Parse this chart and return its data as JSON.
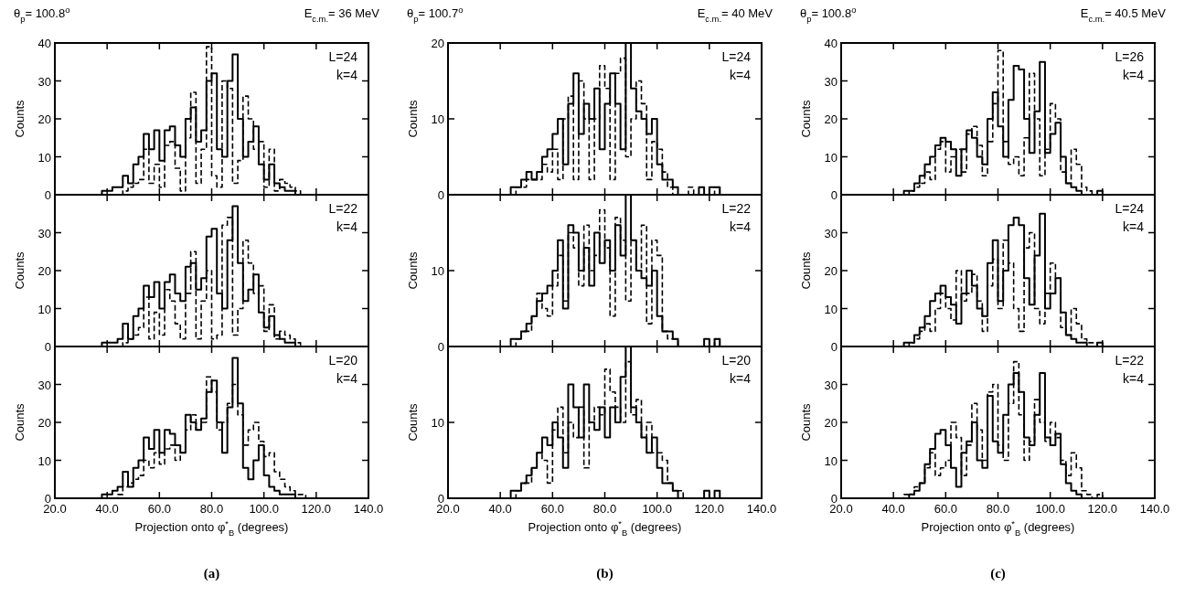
{
  "chart_data": [
    {
      "type": "step",
      "title": "θ$_{p}$= 100.8$^{o}$",
      "subtitle": "E$_{c.m.}$= 36 MeV",
      "ylabel": "Counts",
      "annotations": [
        "L=24",
        "k=4"
      ],
      "xlim": [
        20,
        140
      ],
      "xticks": [
        {
          "value": 20,
          "label": null
        },
        {
          "value": 40,
          "label": null
        },
        {
          "value": 60,
          "label": null
        },
        {
          "value": 80,
          "label": null
        },
        {
          "value": 100,
          "label": null
        },
        {
          "value": 120,
          "label": null
        },
        {
          "value": 140,
          "label": null
        }
      ],
      "ylim": [
        0,
        40
      ],
      "yticks": [
        0,
        10,
        20,
        30,
        40
      ],
      "tick_labels": "y",
      "x": [
        36,
        38,
        40,
        42,
        44,
        46,
        48,
        50,
        52,
        54,
        56,
        58,
        60,
        62,
        64,
        66,
        68,
        70,
        72,
        74,
        76,
        78,
        80,
        82,
        84,
        86,
        88,
        90,
        92,
        94,
        96,
        98,
        100,
        102,
        104,
        106,
        108,
        110,
        112,
        114,
        116,
        118,
        120,
        122,
        124
      ],
      "series": [
        {
          "color": "#000000",
          "line_style": "solid",
          "values": [
            0,
            1,
            1,
            2,
            2,
            5,
            3,
            8,
            10,
            16,
            12,
            17,
            9,
            17,
            18,
            13,
            10,
            20,
            23,
            14,
            17,
            30,
            32,
            12,
            10,
            30,
            37,
            20,
            10,
            14,
            18,
            8,
            4,
            8,
            3,
            2,
            1,
            1,
            0,
            0,
            0,
            0,
            0,
            0,
            0
          ]
        },
        {
          "color": "#000000",
          "line_style": "dashed",
          "values": [
            0,
            0,
            0,
            0,
            0,
            1,
            2,
            3,
            4,
            12,
            3,
            8,
            2,
            13,
            14,
            7,
            1,
            15,
            27,
            3,
            12,
            39,
            5,
            2,
            30,
            28,
            3,
            9,
            26,
            20,
            12,
            14,
            2,
            12,
            1,
            4,
            3,
            2,
            1,
            0,
            0,
            0,
            0,
            0,
            0
          ]
        }
      ]
    },
    {
      "type": "step",
      "ylabel": "Counts",
      "annotations": [
        "L=22",
        "k=4"
      ],
      "xlim": [
        20,
        140
      ],
      "xticks": [
        {
          "value": 20,
          "label": null
        },
        {
          "value": 40,
          "label": null
        },
        {
          "value": 60,
          "label": null
        },
        {
          "value": 80,
          "label": null
        },
        {
          "value": 100,
          "label": null
        },
        {
          "value": 120,
          "label": null
        },
        {
          "value": 140,
          "label": null
        }
      ],
      "ylim": [
        0,
        40
      ],
      "yticks": [
        0,
        10,
        20,
        30
      ],
      "tick_labels": "y",
      "x": [
        36,
        38,
        40,
        42,
        44,
        46,
        48,
        50,
        52,
        54,
        56,
        58,
        60,
        62,
        64,
        66,
        68,
        70,
        72,
        74,
        76,
        78,
        80,
        82,
        84,
        86,
        88,
        90,
        92,
        94,
        96,
        98,
        100,
        102,
        104,
        106,
        108,
        110,
        112,
        114,
        116,
        118,
        120,
        122,
        124
      ],
      "series": [
        {
          "color": "#000000",
          "line_style": "solid",
          "values": [
            0,
            1,
            1,
            1,
            2,
            6,
            2,
            8,
            10,
            16,
            13,
            17,
            10,
            17,
            19,
            14,
            12,
            21,
            22,
            15,
            18,
            29,
            31,
            14,
            10,
            28,
            37,
            22,
            12,
            15,
            19,
            9,
            5,
            8,
            3,
            2,
            1,
            1,
            0,
            0,
            0,
            0,
            0,
            0,
            0
          ]
        },
        {
          "color": "#000000",
          "line_style": "dashed",
          "values": [
            0,
            0,
            0,
            0,
            0,
            1,
            2,
            3,
            5,
            13,
            2,
            9,
            3,
            15,
            12,
            6,
            2,
            14,
            25,
            2,
            12,
            20,
            2,
            3,
            32,
            34,
            3,
            10,
            28,
            22,
            14,
            16,
            4,
            11,
            2,
            4,
            3,
            2,
            1,
            0,
            0,
            0,
            0,
            0,
            0
          ]
        }
      ]
    },
    {
      "type": "step",
      "xlabel": "Projection onto φ$^{*}$$_{B}$ (degrees)",
      "ylabel": "Counts",
      "annotations": [
        "L=20",
        "k=4",
        "(a)"
      ],
      "xlim": [
        20,
        140
      ],
      "xticks": [
        {
          "value": 20,
          "label": "20.0"
        },
        {
          "value": 40,
          "label": "40.0"
        },
        {
          "value": 60,
          "label": "60.0"
        },
        {
          "value": 80,
          "label": "80.0"
        },
        {
          "value": 100,
          "label": "100.0"
        },
        {
          "value": 120,
          "label": "120.0"
        },
        {
          "value": 140,
          "label": "140.0"
        }
      ],
      "ylim": [
        0,
        40
      ],
      "yticks": [
        0,
        10,
        20,
        30
      ],
      "x": [
        36,
        38,
        40,
        42,
        44,
        46,
        48,
        50,
        52,
        54,
        56,
        58,
        60,
        62,
        64,
        66,
        68,
        70,
        72,
        74,
        76,
        78,
        80,
        82,
        84,
        86,
        88,
        90,
        92,
        94,
        96,
        98,
        100,
        102,
        104,
        106,
        108,
        110,
        112,
        114,
        116,
        118,
        120,
        122,
        124
      ],
      "series": [
        {
          "color": "#000000",
          "line_style": "solid",
          "values": [
            0,
            1,
            1,
            2,
            3,
            7,
            3,
            8,
            10,
            16,
            13,
            18,
            12,
            18,
            17,
            14,
            12,
            22,
            20,
            18,
            21,
            28,
            31,
            20,
            12,
            24,
            37,
            25,
            8,
            5,
            10,
            14,
            6,
            3,
            2,
            1,
            1,
            1,
            0,
            0,
            0,
            0,
            0,
            0,
            0
          ]
        },
        {
          "color": "#000000",
          "line_style": "dashed",
          "values": [
            0,
            0,
            0,
            0,
            1,
            3,
            4,
            5,
            6,
            10,
            8,
            12,
            9,
            13,
            14,
            10,
            12,
            18,
            22,
            18,
            20,
            32,
            28,
            18,
            20,
            25,
            30,
            22,
            14,
            18,
            20,
            15,
            11,
            12,
            7,
            5,
            3,
            2,
            1,
            1,
            0,
            0,
            0,
            0,
            0
          ]
        }
      ]
    },
    {
      "type": "step",
      "title": "θ$_{p}$= 100.7$^{o}$",
      "subtitle": "E$_{c.m.}$= 40 MeV",
      "ylabel": "Counts",
      "annotations": [
        "L=24",
        "k=4"
      ],
      "xlim": [
        20,
        140
      ],
      "xticks": [
        {
          "value": 20,
          "label": null
        },
        {
          "value": 40,
          "label": null
        },
        {
          "value": 60,
          "label": null
        },
        {
          "value": 80,
          "label": null
        },
        {
          "value": 100,
          "label": null
        },
        {
          "value": 120,
          "label": null
        },
        {
          "value": 140,
          "label": null
        }
      ],
      "ylim": [
        0,
        20
      ],
      "yticks": [
        0,
        10,
        20
      ],
      "tick_labels": "y",
      "x": [
        36,
        38,
        40,
        42,
        44,
        46,
        48,
        50,
        52,
        54,
        56,
        58,
        60,
        62,
        64,
        66,
        68,
        70,
        72,
        74,
        76,
        78,
        80,
        82,
        84,
        86,
        88,
        90,
        92,
        94,
        96,
        98,
        100,
        102,
        104,
        106,
        108,
        110,
        112,
        114,
        116,
        118,
        120,
        122,
        124
      ],
      "series": [
        {
          "color": "#000000",
          "line_style": "solid",
          "values": [
            0,
            0,
            0,
            0,
            1,
            1,
            2,
            3,
            2,
            3,
            5,
            6,
            8,
            10,
            4,
            12,
            16,
            8,
            12,
            10,
            14,
            6,
            12,
            16,
            12,
            6,
            20,
            14,
            11,
            10,
            8,
            10,
            4,
            2,
            2,
            1,
            0,
            0,
            0,
            0,
            1,
            0,
            1,
            1,
            0
          ]
        },
        {
          "color": "#000000",
          "line_style": "dashed",
          "values": [
            0,
            0,
            0,
            0,
            0,
            1,
            1,
            2,
            2,
            2,
            4,
            3,
            6,
            2,
            10,
            13,
            2,
            15,
            10,
            2,
            10,
            17,
            14,
            2,
            16,
            18,
            5,
            10,
            15,
            12,
            2,
            7,
            6,
            3,
            1,
            0,
            0,
            0,
            1,
            0,
            0,
            0,
            0,
            1,
            0
          ]
        }
      ]
    },
    {
      "type": "step",
      "ylabel": "Counts",
      "annotations": [
        "L=22",
        "k=4"
      ],
      "xlim": [
        20,
        140
      ],
      "xticks": [
        {
          "value": 20,
          "label": null
        },
        {
          "value": 40,
          "label": null
        },
        {
          "value": 60,
          "label": null
        },
        {
          "value": 80,
          "label": null
        },
        {
          "value": 100,
          "label": null
        },
        {
          "value": 120,
          "label": null
        },
        {
          "value": 140,
          "label": null
        }
      ],
      "ylim": [
        0,
        20
      ],
      "yticks": [
        0,
        10
      ],
      "tick_labels": "y",
      "x": [
        36,
        38,
        40,
        42,
        44,
        46,
        48,
        50,
        52,
        54,
        56,
        58,
        60,
        62,
        64,
        66,
        68,
        70,
        72,
        74,
        76,
        78,
        80,
        82,
        84,
        86,
        88,
        90,
        92,
        94,
        96,
        98,
        100,
        102,
        104,
        106,
        108,
        110,
        112,
        114,
        116,
        118,
        120,
        122,
        124
      ],
      "series": [
        {
          "color": "#000000",
          "line_style": "solid",
          "values": [
            0,
            0,
            0,
            0,
            1,
            1,
            2,
            3,
            4,
            6,
            7,
            8,
            10,
            14,
            5,
            16,
            15,
            10,
            13,
            8,
            15,
            11,
            14,
            10,
            16,
            12,
            20,
            14,
            10,
            9,
            8,
            10,
            4,
            2,
            2,
            1,
            0,
            0,
            0,
            0,
            0,
            1,
            0,
            1,
            0
          ]
        },
        {
          "color": "#000000",
          "line_style": "dashed",
          "values": [
            0,
            0,
            0,
            0,
            0,
            1,
            2,
            2,
            4,
            7,
            5,
            4,
            8,
            12,
            6,
            15,
            13,
            8,
            16,
            10,
            12,
            18,
            13,
            4,
            17,
            14,
            6,
            14,
            10,
            16,
            3,
            14,
            12,
            2,
            1,
            1,
            0,
            0,
            0,
            0,
            0,
            0,
            0,
            1,
            0
          ]
        }
      ]
    },
    {
      "type": "step",
      "xlabel": "Projection onto φ$^{*}$$_{B}$ (degrees)",
      "ylabel": "Counts",
      "annotations": [
        "L=20",
        "k=4",
        "(b)"
      ],
      "xlim": [
        20,
        140
      ],
      "xticks": [
        {
          "value": 20,
          "label": "20.0"
        },
        {
          "value": 40,
          "label": "40.0"
        },
        {
          "value": 60,
          "label": "60.0"
        },
        {
          "value": 80,
          "label": "80.0"
        },
        {
          "value": 100,
          "label": "100.0"
        },
        {
          "value": 120,
          "label": "120.0"
        },
        {
          "value": 140,
          "label": "140.0"
        }
      ],
      "ylim": [
        0,
        20
      ],
      "yticks": [
        0,
        10
      ],
      "x": [
        36,
        38,
        40,
        42,
        44,
        46,
        48,
        50,
        52,
        54,
        56,
        58,
        60,
        62,
        64,
        66,
        68,
        70,
        72,
        74,
        76,
        78,
        80,
        82,
        84,
        86,
        88,
        90,
        92,
        94,
        96,
        98,
        100,
        102,
        104,
        106,
        108,
        110,
        112,
        114,
        116,
        118,
        120,
        122,
        124
      ],
      "series": [
        {
          "color": "#000000",
          "line_style": "solid",
          "values": [
            0,
            0,
            0,
            0,
            1,
            1,
            2,
            3,
            4,
            6,
            8,
            7,
            10,
            8,
            4,
            15,
            12,
            8,
            15,
            10,
            9,
            12,
            8,
            12,
            10,
            16,
            20,
            12,
            10,
            8,
            6,
            8,
            4,
            2,
            2,
            1,
            0,
            0,
            0,
            0,
            0,
            1,
            0,
            1,
            0
          ]
        },
        {
          "color": "#000000",
          "line_style": "dashed",
          "values": [
            0,
            0,
            0,
            0,
            0,
            1,
            2,
            2,
            4,
            6,
            5,
            2,
            9,
            12,
            6,
            10,
            8,
            12,
            4,
            10,
            12,
            11,
            17,
            14,
            12,
            10,
            18,
            11,
            13,
            8,
            10,
            6,
            6,
            5,
            2,
            1,
            1,
            0,
            0,
            0,
            0,
            0,
            0,
            0,
            0
          ]
        }
      ]
    },
    {
      "type": "step",
      "title": "θ$_{p}$= 100.8$^{o}$",
      "subtitle": "E$_{c.m.}$= 40.5 MeV",
      "ylabel": "Counts",
      "annotations": [
        "L=26",
        "k=4"
      ],
      "xlim": [
        20,
        140
      ],
      "xticks": [
        {
          "value": 20,
          "label": null
        },
        {
          "value": 40,
          "label": null
        },
        {
          "value": 60,
          "label": null
        },
        {
          "value": 80,
          "label": null
        },
        {
          "value": 100,
          "label": null
        },
        {
          "value": 120,
          "label": null
        },
        {
          "value": 140,
          "label": null
        }
      ],
      "ylim": [
        0,
        40
      ],
      "yticks": [
        0,
        10,
        20,
        30,
        40
      ],
      "tick_labels": "y",
      "x": [
        36,
        38,
        40,
        42,
        44,
        46,
        48,
        50,
        52,
        54,
        56,
        58,
        60,
        62,
        64,
        66,
        68,
        70,
        72,
        74,
        76,
        78,
        80,
        82,
        84,
        86,
        88,
        90,
        92,
        94,
        96,
        98,
        100,
        102,
        104,
        106,
        108,
        110,
        112,
        114,
        116,
        118,
        120,
        122,
        124
      ],
      "series": [
        {
          "color": "#000000",
          "line_style": "solid",
          "values": [
            0,
            0,
            0,
            0,
            1,
            1,
            3,
            5,
            8,
            10,
            13,
            15,
            14,
            12,
            5,
            12,
            17,
            15,
            10,
            8,
            20,
            27,
            18,
            10,
            25,
            34,
            33,
            20,
            11,
            22,
            35,
            11,
            16,
            19,
            10,
            3,
            2,
            1,
            0,
            0,
            0,
            1,
            0,
            0,
            0
          ]
        },
        {
          "color": "#000000",
          "line_style": "dashed",
          "values": [
            0,
            0,
            0,
            0,
            0,
            1,
            2,
            3,
            6,
            4,
            12,
            14,
            6,
            10,
            12,
            6,
            16,
            18,
            13,
            5,
            14,
            24,
            38,
            14,
            8,
            10,
            5,
            15,
            32,
            20,
            5,
            12,
            24,
            20,
            6,
            3,
            12,
            8,
            2,
            1,
            0,
            0,
            0,
            0,
            0
          ]
        }
      ]
    },
    {
      "type": "step",
      "ylabel": "Counts",
      "annotations": [
        "L=24",
        "k=4"
      ],
      "xlim": [
        20,
        140
      ],
      "xticks": [
        {
          "value": 20,
          "label": null
        },
        {
          "value": 40,
          "label": null
        },
        {
          "value": 60,
          "label": null
        },
        {
          "value": 80,
          "label": null
        },
        {
          "value": 100,
          "label": null
        },
        {
          "value": 120,
          "label": null
        },
        {
          "value": 140,
          "label": null
        }
      ],
      "ylim": [
        0,
        40
      ],
      "yticks": [
        0,
        10,
        20,
        30
      ],
      "tick_labels": "y",
      "x": [
        36,
        38,
        40,
        42,
        44,
        46,
        48,
        50,
        52,
        54,
        56,
        58,
        60,
        62,
        64,
        66,
        68,
        70,
        72,
        74,
        76,
        78,
        80,
        82,
        84,
        86,
        88,
        90,
        92,
        94,
        96,
        98,
        100,
        102,
        104,
        106,
        108,
        110,
        112,
        114,
        116,
        118,
        120,
        122,
        124
      ],
      "series": [
        {
          "color": "#000000",
          "line_style": "solid",
          "values": [
            0,
            0,
            0,
            0,
            1,
            1,
            3,
            5,
            8,
            12,
            14,
            16,
            13,
            11,
            6,
            14,
            20,
            16,
            10,
            8,
            22,
            28,
            12,
            20,
            32,
            34,
            32,
            18,
            11,
            24,
            35,
            10,
            14,
            18,
            9,
            3,
            2,
            1,
            1,
            0,
            0,
            1,
            0,
            0,
            0
          ]
        },
        {
          "color": "#000000",
          "line_style": "dashed",
          "values": [
            0,
            0,
            0,
            0,
            0,
            1,
            2,
            4,
            6,
            4,
            10,
            14,
            10,
            7,
            20,
            12,
            14,
            19,
            12,
            4,
            16,
            23,
            10,
            28,
            22,
            10,
            4,
            26,
            30,
            10,
            6,
            14,
            22,
            18,
            5,
            3,
            10,
            6,
            2,
            1,
            1,
            0,
            0,
            0,
            0
          ]
        }
      ]
    },
    {
      "type": "step",
      "xlabel": "Projection onto φ$^{*}$$_{B}$ (degrees)",
      "ylabel": "Counts",
      "annotations": [
        "L=22",
        "k=4",
        "(c)"
      ],
      "xlim": [
        20,
        140
      ],
      "xticks": [
        {
          "value": 20,
          "label": "20.0"
        },
        {
          "value": 40,
          "label": "40.0"
        },
        {
          "value": 60,
          "label": "60.0"
        },
        {
          "value": 80,
          "label": "80.0"
        },
        {
          "value": 100,
          "label": "100.0"
        },
        {
          "value": 120,
          "label": "120.0"
        },
        {
          "value": 140,
          "label": "140.0"
        }
      ],
      "ylim": [
        0,
        40
      ],
      "yticks": [
        0,
        10,
        20,
        30
      ],
      "x": [
        36,
        38,
        40,
        42,
        44,
        46,
        48,
        50,
        52,
        54,
        56,
        58,
        60,
        62,
        64,
        66,
        68,
        70,
        72,
        74,
        76,
        78,
        80,
        82,
        84,
        86,
        88,
        90,
        92,
        94,
        96,
        98,
        100,
        102,
        104,
        106,
        108,
        110,
        112,
        114,
        116,
        118,
        120,
        122,
        124
      ],
      "series": [
        {
          "color": "#000000",
          "line_style": "solid",
          "values": [
            0,
            0,
            0,
            0,
            0,
            1,
            2,
            4,
            9,
            13,
            17,
            18,
            14,
            8,
            3,
            12,
            15,
            20,
            10,
            8,
            27,
            15,
            12,
            22,
            30,
            33,
            28,
            16,
            14,
            22,
            33,
            16,
            14,
            17,
            9,
            4,
            2,
            1,
            0,
            0,
            0,
            0,
            0,
            0,
            0
          ]
        },
        {
          "color": "#000000",
          "line_style": "dashed",
          "values": [
            0,
            0,
            0,
            0,
            1,
            1,
            3,
            4,
            8,
            12,
            6,
            8,
            10,
            20,
            16,
            6,
            14,
            25,
            18,
            10,
            28,
            30,
            14,
            10,
            25,
            36,
            22,
            10,
            15,
            26,
            20,
            15,
            20,
            16,
            10,
            6,
            12,
            8,
            2,
            1,
            0,
            1,
            0,
            0,
            0
          ]
        }
      ]
    }
  ]
}
